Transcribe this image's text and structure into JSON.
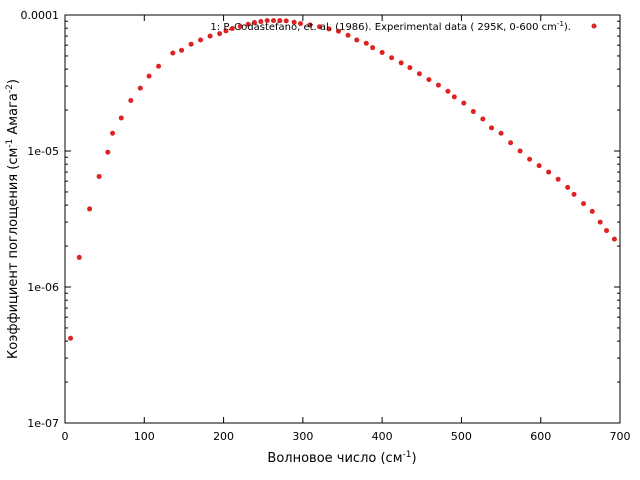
{
  "chart_data": {
    "type": "scatter",
    "xlabel": "Волновое число (см",
    "xlabel_sup": "-1",
    "xlabel_end": ")",
    "ylabel": "Коэффициент поглощения (см",
    "ylabel_sup1": "-1",
    "ylabel_mid": " Амага",
    "ylabel_sup2": "-2",
    "ylabel_end": ")",
    "xlim": [
      0,
      700
    ],
    "ylim": [
      1e-07,
      0.0001
    ],
    "yscale": "log",
    "grid": false,
    "legend_position": "top-right",
    "x_ticks": [
      0,
      100,
      200,
      300,
      400,
      500,
      600,
      700
    ],
    "x_tick_labels": [
      "0",
      "100",
      "200",
      "300",
      "400",
      "500",
      "600",
      "700"
    ],
    "y_ticks": [
      1e-07,
      1e-06,
      1e-05,
      0.0001
    ],
    "y_tick_labels": [
      "1e-07",
      "1e-06",
      "1e-05",
      "0.0001"
    ],
    "series": [
      {
        "name": "1: P. Codastefano, et. al. (1986). Experimental data ( 295K, 0-600 cm",
        "name_sup": "-1",
        "name_end": ").",
        "color": "#dd2222",
        "x": [
          7,
          18,
          31,
          43,
          54,
          60,
          71,
          83,
          95,
          106,
          118,
          136,
          147,
          159,
          171,
          183,
          195,
          203,
          211,
          221,
          231,
          239,
          247,
          255,
          263,
          271,
          279,
          289,
          297,
          309,
          321,
          333,
          345,
          357,
          368,
          380,
          388,
          400,
          412,
          424,
          435,
          447,
          459,
          471,
          483,
          491,
          503,
          515,
          527,
          538,
          550,
          562,
          574,
          586,
          598,
          610,
          622,
          634,
          642,
          654,
          665,
          675,
          683,
          693
        ],
        "y": [
          4.2e-07,
          1.65e-06,
          3.75e-06,
          6.5e-06,
          9.8e-06,
          1.35e-05,
          1.75e-05,
          2.35e-05,
          2.9e-05,
          3.55e-05,
          4.2e-05,
          5.25e-05,
          5.5e-05,
          6.1e-05,
          6.55e-05,
          7e-05,
          7.3e-05,
          7.65e-05,
          7.95e-05,
          8.25e-05,
          8.55e-05,
          8.8e-05,
          8.95e-05,
          9.1e-05,
          9.1e-05,
          9.1e-05,
          9.05e-05,
          8.85e-05,
          8.65e-05,
          8.45e-05,
          8.2e-05,
          7.9e-05,
          7.6e-05,
          7.1e-05,
          6.55e-05,
          6.2e-05,
          5.75e-05,
          5.3e-05,
          4.85e-05,
          4.45e-05,
          4.1e-05,
          3.7e-05,
          3.35e-05,
          3.05e-05,
          2.75e-05,
          2.5e-05,
          2.25e-05,
          1.95e-05,
          1.72e-05,
          1.48e-05,
          1.35e-05,
          1.15e-05,
          1e-05,
          8.7e-06,
          7.8e-06,
          7e-06,
          6.2e-06,
          5.4e-06,
          4.8e-06,
          4.1e-06,
          3.6e-06,
          3e-06,
          2.6e-06,
          2.25e-06
        ]
      }
    ]
  }
}
